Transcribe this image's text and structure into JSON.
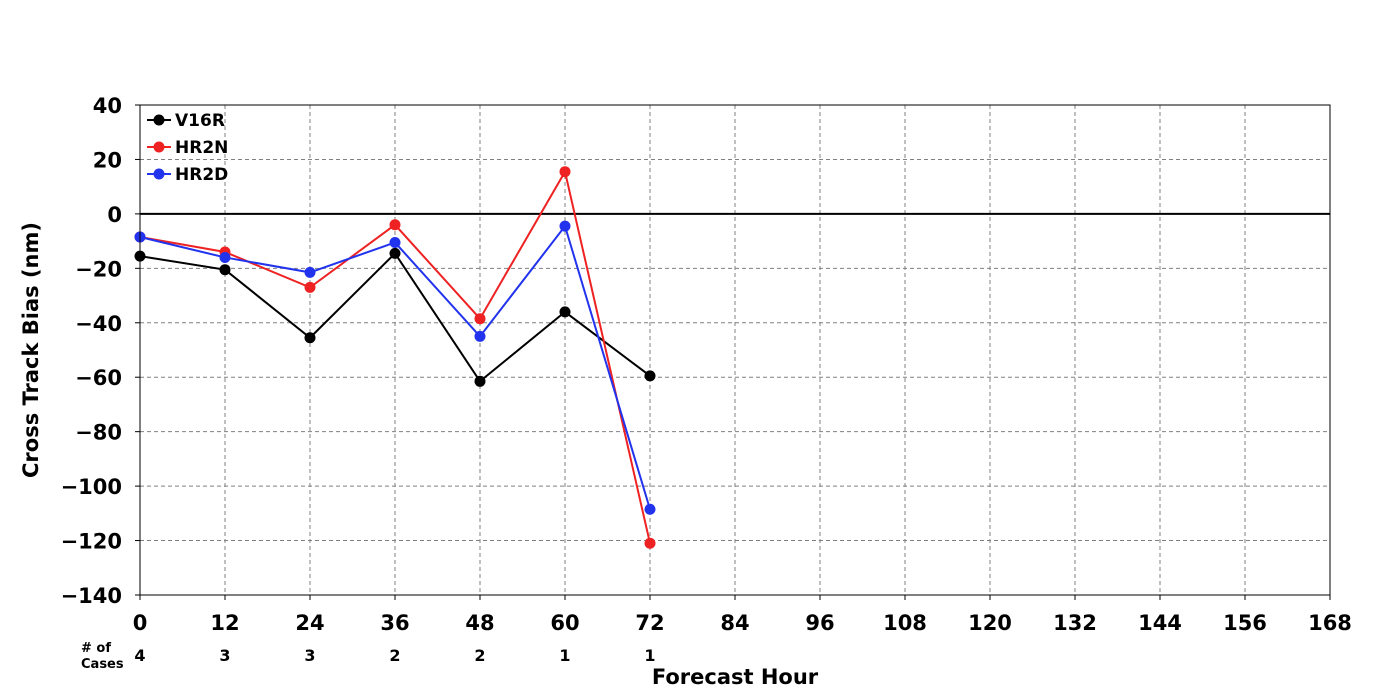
{
  "chart_data": {
    "type": "line",
    "xlabel": "Forecast Hour",
    "ylabel": "Cross Track Bias (nm)",
    "xlim": [
      0,
      168
    ],
    "ylim": [
      -140,
      40
    ],
    "xticks": [
      0,
      12,
      24,
      36,
      48,
      60,
      72,
      84,
      96,
      108,
      120,
      132,
      144,
      156,
      168
    ],
    "yticks": [
      40,
      20,
      0,
      -20,
      -40,
      -60,
      -80,
      -100,
      -120,
      -140
    ],
    "grid": true,
    "legend_position": "top-left",
    "zero_line": true,
    "cases_label_line1": "# of",
    "cases_label_line2": "Cases",
    "cases": [
      {
        "x": 0,
        "count": "4"
      },
      {
        "x": 12,
        "count": "3"
      },
      {
        "x": 24,
        "count": "3"
      },
      {
        "x": 36,
        "count": "2"
      },
      {
        "x": 48,
        "count": "2"
      },
      {
        "x": 60,
        "count": "1"
      },
      {
        "x": 72,
        "count": "1"
      }
    ],
    "x": [
      0,
      12,
      24,
      36,
      48,
      60,
      72
    ],
    "series": [
      {
        "name": "V16R",
        "color": "#000000",
        "values": [
          -15.5,
          -20.5,
          -45.5,
          -14.5,
          -61.5,
          -36,
          -59.5
        ]
      },
      {
        "name": "HR2N",
        "color": "#ee2222",
        "values": [
          -8.5,
          -14,
          -27,
          -4,
          -38.5,
          15.5,
          -121
        ]
      },
      {
        "name": "HR2D",
        "color": "#2233ee",
        "values": [
          -8.5,
          -16,
          -21.5,
          -10.5,
          -45,
          -4.5,
          -108.5
        ]
      }
    ]
  }
}
